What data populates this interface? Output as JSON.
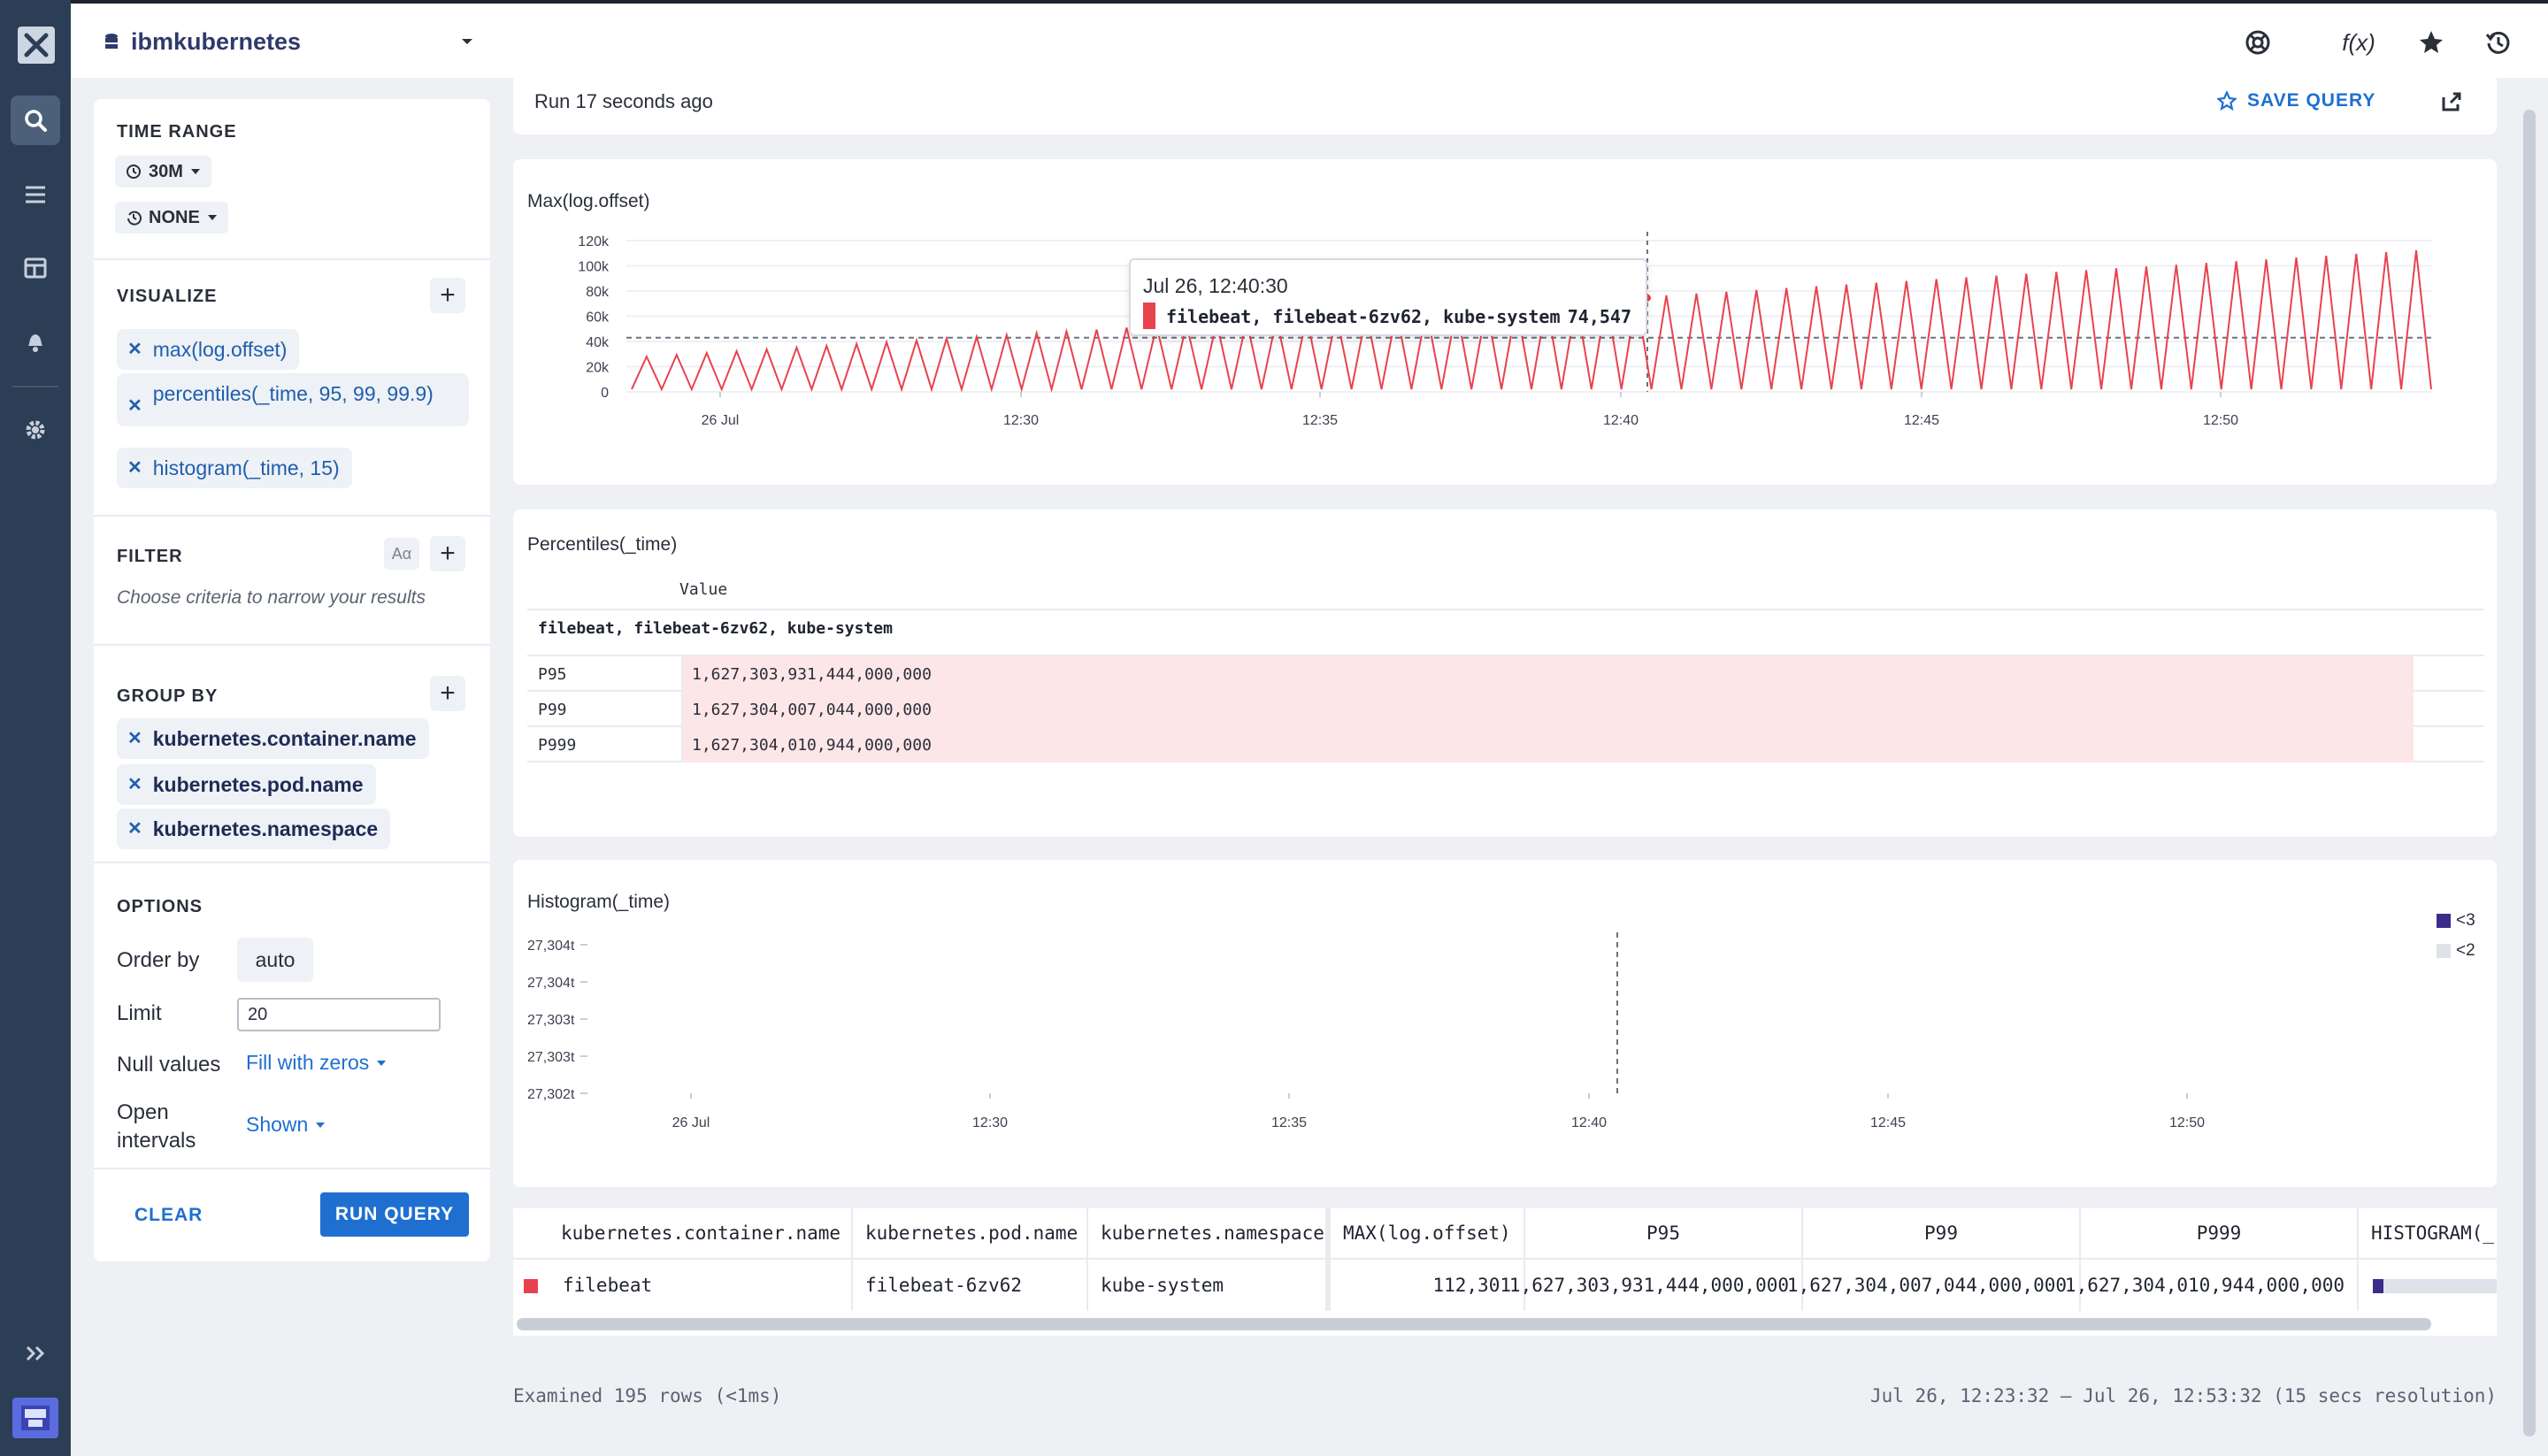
{
  "app": {
    "dataset": "ibmkubernetes"
  },
  "colors": {
    "accent": "#1f6fd1",
    "series": "#e9424f",
    "rail": "#2c3e55",
    "hist_lt3": "#3a2d8c",
    "hist_lt2": "#dfe2e8"
  },
  "rail": {
    "icons": [
      "close-icon",
      "search-icon",
      "stream-icon",
      "dashboard-icon",
      "bell-icon",
      "gear-icon",
      "expand-icon",
      "avatar"
    ]
  },
  "toolbar": {
    "icons": [
      "help-icon",
      "function-icon",
      "star-icon",
      "history-icon"
    ],
    "function_label": "f(x)"
  },
  "panel": {
    "time_range": {
      "title": "TIME RANGE",
      "range": "30M",
      "compare": "NONE"
    },
    "visualize": {
      "title": "VISUALIZE",
      "items": [
        "max(log.offset)",
        "percentiles(_time, 95, 99, 99.9)",
        "histogram(_time, 15)"
      ]
    },
    "filter": {
      "title": "FILTER",
      "case_label": "Aα",
      "placeholder": "Choose criteria to narrow your results"
    },
    "group_by": {
      "title": "GROUP BY",
      "items": [
        "kubernetes.container.name",
        "kubernetes.pod.name",
        "kubernetes.namespace"
      ]
    },
    "options": {
      "title": "OPTIONS",
      "order_by_label": "Order by",
      "order_by_value": "auto",
      "limit_label": "Limit",
      "limit_value": "20",
      "null_label": "Null values",
      "null_value": "Fill with zeros",
      "open_label": "Open intervals",
      "open_value": "Shown"
    },
    "clear_label": "CLEAR",
    "run_label": "RUN QUERY"
  },
  "runbar": {
    "status": "Run 17 seconds ago",
    "save_label": "SAVE QUERY"
  },
  "charts": {
    "max_title": "Max(log.offset)",
    "pct_title": "Percentiles(_time)",
    "hist_title": "Histogram(_time)"
  },
  "tooltip": {
    "time": "Jul 26, 12:40:30",
    "series": "filebeat, filebeat-6zv62, kube-system",
    "value": "74,547"
  },
  "chart_data": [
    {
      "type": "line",
      "title": "Max(log.offset)",
      "series": [
        {
          "name": "filebeat, filebeat-6zv62, kube-system",
          "note": "sawtooth pattern",
          "peak_value": 112301
        }
      ],
      "x_ticks": [
        "26 Jul",
        "12:30",
        "12:35",
        "12:40",
        "12:45",
        "12:50"
      ],
      "y_ticks": [
        "0",
        "20k",
        "40k",
        "60k",
        "80k",
        "100k",
        "120k"
      ],
      "ylim": [
        0,
        120000
      ],
      "reference_line": 43000
    },
    {
      "type": "table",
      "title": "Percentiles(_time)",
      "column": "Value",
      "group": "filebeat, filebeat-6zv62, kube-system",
      "rows": [
        {
          "label": "P95",
          "value": "1,627,303,931,444,000,000"
        },
        {
          "label": "P99",
          "value": "1,627,304,007,044,000,000"
        },
        {
          "label": "P999",
          "value": "1,627,304,010,944,000,000"
        }
      ]
    },
    {
      "type": "heatmap",
      "title": "Histogram(_time)",
      "x_ticks": [
        "26 Jul",
        "12:30",
        "12:35",
        "12:40",
        "12:45",
        "12:50"
      ],
      "y_ticks": [
        "27,304t",
        "27,304t",
        "27,303t",
        "27,303t",
        "27,302t"
      ],
      "legend": [
        "<3",
        "<2"
      ]
    }
  ],
  "table": {
    "headers": [
      "kubernetes.container.name",
      "kubernetes.pod.name",
      "kubernetes.namespace",
      "MAX(log.offset)",
      "P95",
      "P99",
      "P999",
      "HISTOGRAM(_"
    ],
    "row": [
      "filebeat",
      "filebeat-6zv62",
      "kube-system",
      "112,301",
      "1,627,303,931,444,000,000",
      "1,627,304,007,044,000,000",
      "1,627,304,010,944,000,000"
    ]
  },
  "footer": {
    "examined": "Examined 195 rows (<1ms)",
    "range": "Jul 26, 12:23:32 — Jul 26, 12:53:32 (15 secs resolution)"
  }
}
